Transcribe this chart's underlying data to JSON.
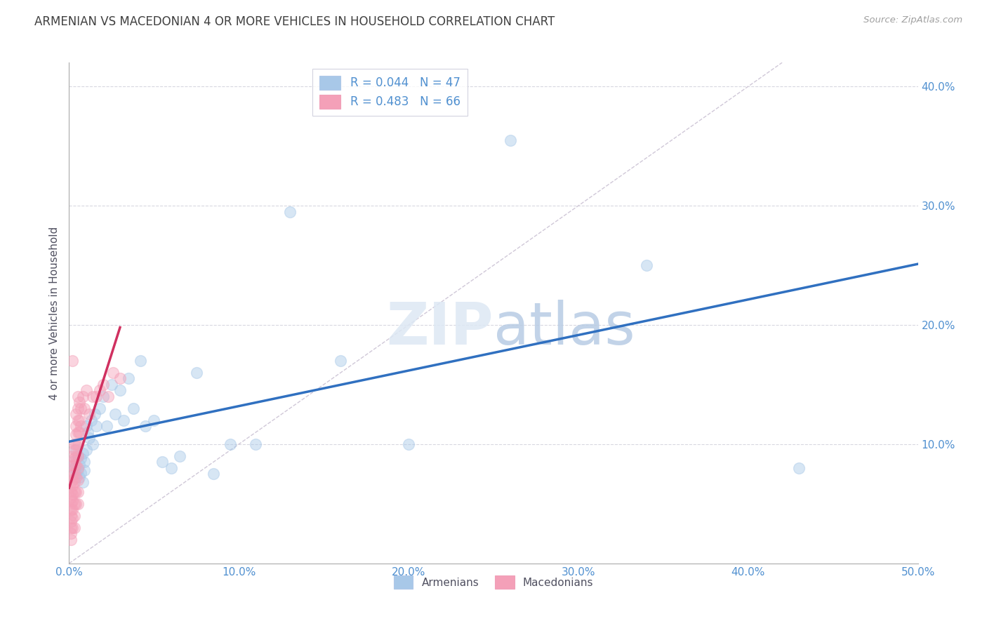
{
  "title": "ARMENIAN VS MACEDONIAN 4 OR MORE VEHICLES IN HOUSEHOLD CORRELATION CHART",
  "source": "Source: ZipAtlas.com",
  "ylabel": "4 or more Vehicles in Household",
  "xlabel_armenians": "Armenians",
  "xlabel_macedonians": "Macedonians",
  "xlim": [
    0.0,
    0.5
  ],
  "ylim": [
    0.0,
    0.42
  ],
  "xticks": [
    0.0,
    0.1,
    0.2,
    0.3,
    0.4,
    0.5
  ],
  "yticks": [
    0.0,
    0.1,
    0.2,
    0.3,
    0.4
  ],
  "xtick_labels": [
    "0.0%",
    "10.0%",
    "20.0%",
    "30.0%",
    "40.0%",
    "50.0%"
  ],
  "ytick_labels": [
    "",
    "10.0%",
    "20.0%",
    "30.0%",
    "40.0%"
  ],
  "legend_armenians": "R = 0.044   N = 47",
  "legend_macedonians": "R = 0.483   N = 66",
  "armenian_color": "#a8c8e8",
  "macedonian_color": "#f4a0b8",
  "armenian_line_color": "#3070c0",
  "macedonian_line_color": "#d03060",
  "diagonal_color": "#d0c8d8",
  "grid_color": "#d8d8e0",
  "title_color": "#404040",
  "axis_color": "#5090d0",
  "armenians_x": [
    0.002,
    0.003,
    0.004,
    0.004,
    0.005,
    0.005,
    0.006,
    0.006,
    0.007,
    0.007,
    0.008,
    0.008,
    0.009,
    0.009,
    0.01,
    0.01,
    0.011,
    0.012,
    0.013,
    0.014,
    0.015,
    0.016,
    0.018,
    0.02,
    0.022,
    0.025,
    0.027,
    0.03,
    0.032,
    0.035,
    0.038,
    0.042,
    0.045,
    0.05,
    0.055,
    0.06,
    0.065,
    0.075,
    0.085,
    0.095,
    0.11,
    0.13,
    0.16,
    0.2,
    0.26,
    0.34,
    0.43
  ],
  "armenians_y": [
    0.085,
    0.08,
    0.095,
    0.075,
    0.09,
    0.078,
    0.083,
    0.072,
    0.088,
    0.076,
    0.092,
    0.068,
    0.085,
    0.078,
    0.115,
    0.095,
    0.11,
    0.105,
    0.12,
    0.1,
    0.125,
    0.115,
    0.13,
    0.14,
    0.115,
    0.15,
    0.125,
    0.145,
    0.12,
    0.155,
    0.13,
    0.17,
    0.115,
    0.12,
    0.085,
    0.08,
    0.09,
    0.16,
    0.075,
    0.1,
    0.1,
    0.295,
    0.17,
    0.1,
    0.355,
    0.25,
    0.08
  ],
  "macedonians_x": [
    0.001,
    0.001,
    0.001,
    0.001,
    0.001,
    0.001,
    0.001,
    0.001,
    0.001,
    0.001,
    0.002,
    0.002,
    0.002,
    0.002,
    0.002,
    0.002,
    0.002,
    0.002,
    0.002,
    0.002,
    0.002,
    0.003,
    0.003,
    0.003,
    0.003,
    0.003,
    0.003,
    0.003,
    0.003,
    0.003,
    0.003,
    0.004,
    0.004,
    0.004,
    0.004,
    0.004,
    0.004,
    0.004,
    0.004,
    0.004,
    0.005,
    0.005,
    0.005,
    0.005,
    0.005,
    0.005,
    0.005,
    0.005,
    0.005,
    0.005,
    0.006,
    0.006,
    0.006,
    0.007,
    0.007,
    0.008,
    0.009,
    0.01,
    0.012,
    0.014,
    0.016,
    0.018,
    0.02,
    0.023,
    0.026,
    0.03
  ],
  "macedonians_y": [
    0.068,
    0.06,
    0.055,
    0.05,
    0.045,
    0.04,
    0.035,
    0.03,
    0.025,
    0.02,
    0.09,
    0.082,
    0.075,
    0.07,
    0.065,
    0.058,
    0.052,
    0.045,
    0.038,
    0.03,
    0.17,
    0.1,
    0.095,
    0.088,
    0.082,
    0.075,
    0.068,
    0.06,
    0.05,
    0.04,
    0.03,
    0.125,
    0.115,
    0.108,
    0.1,
    0.09,
    0.082,
    0.072,
    0.06,
    0.05,
    0.14,
    0.13,
    0.12,
    0.11,
    0.1,
    0.09,
    0.08,
    0.07,
    0.06,
    0.05,
    0.135,
    0.12,
    0.11,
    0.13,
    0.115,
    0.14,
    0.13,
    0.145,
    0.125,
    0.14,
    0.14,
    0.145,
    0.15,
    0.14,
    0.16,
    0.155
  ],
  "marker_size": 130,
  "marker_alpha": 0.45,
  "line_width": 2.5
}
